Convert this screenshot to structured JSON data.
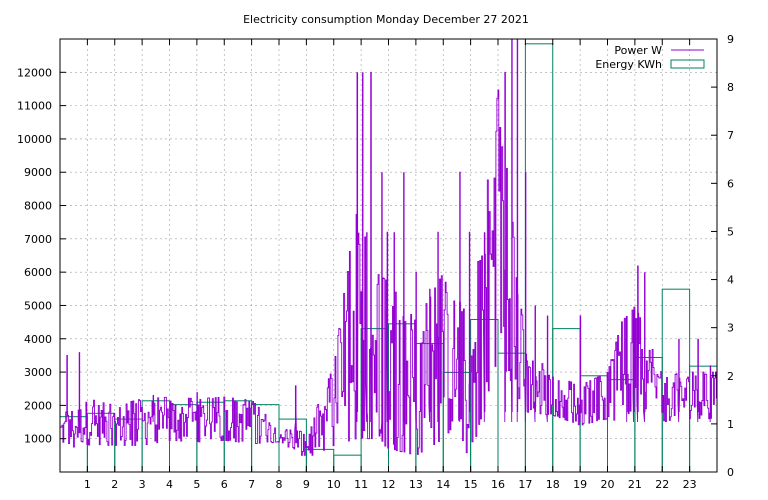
{
  "chart_data": {
    "type": "line",
    "title": "Electricity consumption Monday December 27 2021",
    "grid": true,
    "legend_position": "top-right",
    "x_axis": {
      "range": [
        0,
        24
      ],
      "ticks": [
        "1",
        "2",
        "3",
        "4",
        "5",
        "6",
        "7",
        "8",
        "9",
        "10",
        "11",
        "12",
        "13",
        "14",
        "15",
        "16",
        "17",
        "18",
        "19",
        "20",
        "21",
        "22",
        "23"
      ]
    },
    "y_axis_left": {
      "range": [
        0,
        13000
      ],
      "ticks": [
        "1000",
        "2000",
        "3000",
        "4000",
        "5000",
        "6000",
        "7000",
        "8000",
        "9000",
        "10000",
        "11000",
        "12000"
      ]
    },
    "y_axis_right": {
      "range": [
        0,
        9
      ],
      "ticks": [
        "0",
        "1",
        "2",
        "3",
        "4",
        "5",
        "6",
        "7",
        "8",
        "9"
      ]
    },
    "series": [
      {
        "name": "Power W",
        "axis": "left",
        "style": "line",
        "color": "#9400d3",
        "profile": [
          [
            0.0,
            1200,
            500
          ],
          [
            1.0,
            1500,
            700
          ],
          [
            2.0,
            1400,
            600
          ],
          [
            3.0,
            1500,
            700
          ],
          [
            4.0,
            1600,
            650
          ],
          [
            5.0,
            1550,
            650
          ],
          [
            6.0,
            1600,
            650
          ],
          [
            7.0,
            1500,
            650
          ],
          [
            8.0,
            1100,
            200
          ],
          [
            9.0,
            800,
            400
          ],
          [
            10.0,
            2000,
            1200
          ],
          [
            10.8,
            4500,
            3500
          ],
          [
            11.5,
            3500,
            2500
          ],
          [
            12.0,
            3200,
            2500
          ],
          [
            13.0,
            2500,
            2000
          ],
          [
            14.0,
            3500,
            2500
          ],
          [
            15.0,
            2500,
            2000
          ],
          [
            16.0,
            7500,
            4000
          ],
          [
            17.0,
            2800,
            1000
          ],
          [
            18.0,
            2300,
            600
          ],
          [
            19.0,
            2000,
            600
          ],
          [
            20.0,
            2300,
            700
          ],
          [
            20.5,
            3000,
            1500
          ],
          [
            21.0,
            3500,
            1500
          ],
          [
            22.0,
            2200,
            700
          ],
          [
            23.0,
            2300,
            700
          ],
          [
            24.0,
            2300,
            700
          ]
        ],
        "spikes": [
          [
            0.25,
            3500
          ],
          [
            0.7,
            3600
          ],
          [
            3.4,
            2300
          ],
          [
            5.0,
            2400
          ],
          [
            8.6,
            2600
          ],
          [
            10.85,
            12000
          ],
          [
            11.05,
            12000
          ],
          [
            11.2,
            7200
          ],
          [
            11.35,
            12000
          ],
          [
            11.75,
            9000
          ],
          [
            11.95,
            7200
          ],
          [
            12.2,
            7200
          ],
          [
            12.55,
            9000
          ],
          [
            13.0,
            6000
          ],
          [
            13.5,
            5500
          ],
          [
            13.8,
            7200
          ],
          [
            14.6,
            9000
          ],
          [
            14.95,
            7200
          ],
          [
            15.5,
            7200
          ],
          [
            16.25,
            12000
          ],
          [
            16.5,
            13000
          ],
          [
            16.7,
            13000
          ],
          [
            17.0,
            9000
          ],
          [
            17.35,
            5000
          ],
          [
            17.8,
            4700
          ],
          [
            19.0,
            4700
          ],
          [
            20.7,
            4000
          ],
          [
            20.95,
            4600
          ],
          [
            21.1,
            6200
          ],
          [
            21.35,
            6000
          ],
          [
            22.6,
            4000
          ],
          [
            23.3,
            4000
          ],
          [
            23.75,
            3200
          ]
        ]
      },
      {
        "name": "Energy KWh",
        "axis": "right",
        "style": "steps",
        "color": "#008060",
        "x": [
          0,
          1,
          2,
          3,
          4,
          5,
          6,
          7,
          8,
          9,
          10,
          11,
          12,
          13,
          14,
          15,
          16,
          17,
          18,
          19,
          20,
          21,
          22,
          23
        ],
        "values": [
          1.15,
          1.22,
          1.1,
          1.48,
          1.4,
          1.45,
          1.48,
          1.4,
          1.1,
          0.47,
          0.35,
          2.98,
          3.08,
          2.67,
          2.07,
          3.17,
          2.47,
          8.9,
          2.98,
          2.0,
          1.92,
          2.38,
          3.8,
          2.2
        ]
      }
    ]
  }
}
